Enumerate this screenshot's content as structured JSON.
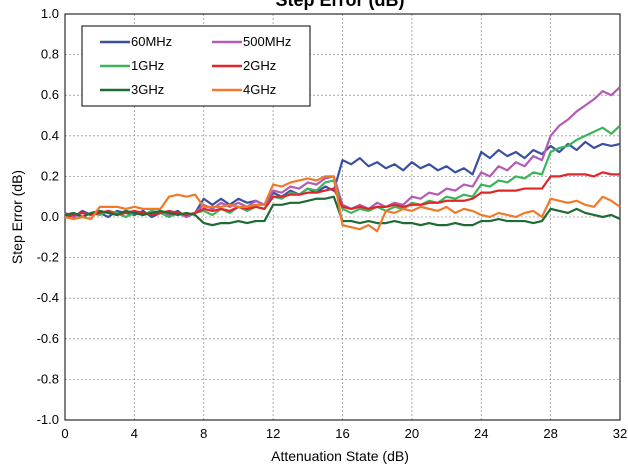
{
  "chart_data": {
    "type": "line",
    "title": "Step Error (dB)",
    "xlabel": "Attenuation State (dB)",
    "ylabel": "Step Error (dB)",
    "x": [
      0,
      0.5,
      1,
      1.5,
      2,
      2.5,
      3,
      3.5,
      4,
      4.5,
      5,
      5.5,
      6,
      6.5,
      7,
      7.5,
      8,
      8.5,
      9,
      9.5,
      10,
      10.5,
      11,
      11.5,
      12,
      12.5,
      13,
      13.5,
      14,
      14.5,
      15,
      15.5,
      16,
      16.5,
      17,
      17.5,
      18,
      18.5,
      19,
      19.5,
      20,
      20.5,
      21,
      21.5,
      22,
      22.5,
      23,
      23.5,
      24,
      24.5,
      25,
      25.5,
      26,
      26.5,
      27,
      27.5,
      28,
      28.5,
      29,
      29.5,
      30,
      30.5,
      31,
      31.5,
      32
    ],
    "series": [
      {
        "name": "60MHz",
        "color": "#3a4fa0",
        "values": [
          0.02,
          0.0,
          0.03,
          0.01,
          0.02,
          0.0,
          0.03,
          0.02,
          0.01,
          0.03,
          0.0,
          0.02,
          0.01,
          0.03,
          0.0,
          0.02,
          0.09,
          0.06,
          0.09,
          0.06,
          0.09,
          0.07,
          0.08,
          0.06,
          0.12,
          0.1,
          0.13,
          0.11,
          0.14,
          0.12,
          0.15,
          0.13,
          0.28,
          0.26,
          0.29,
          0.25,
          0.27,
          0.24,
          0.26,
          0.23,
          0.27,
          0.24,
          0.26,
          0.23,
          0.25,
          0.22,
          0.24,
          0.21,
          0.32,
          0.29,
          0.33,
          0.3,
          0.32,
          0.29,
          0.33,
          0.31,
          0.35,
          0.32,
          0.36,
          0.33,
          0.37,
          0.34,
          0.36,
          0.35,
          0.36
        ]
      },
      {
        "name": "500MHz",
        "color": "#b45bb4",
        "values": [
          0.02,
          0.0,
          0.02,
          0.01,
          0.03,
          0.02,
          0.01,
          0.03,
          0.02,
          0.01,
          0.03,
          0.02,
          0.01,
          0.02,
          0.0,
          0.02,
          0.06,
          0.04,
          0.07,
          0.05,
          0.07,
          0.05,
          0.08,
          0.06,
          0.13,
          0.12,
          0.15,
          0.14,
          0.17,
          0.16,
          0.19,
          0.2,
          0.06,
          0.04,
          0.06,
          0.04,
          0.07,
          0.05,
          0.07,
          0.06,
          0.1,
          0.09,
          0.12,
          0.11,
          0.14,
          0.13,
          0.16,
          0.15,
          0.22,
          0.2,
          0.25,
          0.23,
          0.27,
          0.25,
          0.3,
          0.28,
          0.4,
          0.45,
          0.48,
          0.52,
          0.55,
          0.58,
          0.62,
          0.6,
          0.64
        ]
      },
      {
        "name": "1GHz",
        "color": "#3cb55a",
        "values": [
          0.01,
          0.02,
          0.0,
          0.02,
          0.01,
          0.03,
          0.02,
          0.0,
          0.02,
          0.01,
          0.03,
          0.02,
          0.0,
          0.02,
          0.01,
          0.02,
          0.03,
          0.01,
          0.04,
          0.02,
          0.05,
          0.03,
          0.05,
          0.04,
          0.1,
          0.09,
          0.12,
          0.11,
          0.14,
          0.13,
          0.17,
          0.18,
          0.04,
          0.02,
          0.04,
          0.03,
          0.05,
          0.03,
          0.05,
          0.04,
          0.07,
          0.06,
          0.08,
          0.07,
          0.1,
          0.09,
          0.11,
          0.1,
          0.16,
          0.15,
          0.18,
          0.17,
          0.2,
          0.19,
          0.22,
          0.21,
          0.32,
          0.34,
          0.35,
          0.38,
          0.4,
          0.42,
          0.44,
          0.41,
          0.45
        ]
      },
      {
        "name": "2GHz",
        "color": "#e0262a",
        "values": [
          0.0,
          0.01,
          0.02,
          0.01,
          0.02,
          0.03,
          0.01,
          0.02,
          0.03,
          0.02,
          0.01,
          0.02,
          0.03,
          0.02,
          0.01,
          0.02,
          0.04,
          0.03,
          0.04,
          0.03,
          0.05,
          0.04,
          0.05,
          0.04,
          0.1,
          0.1,
          0.11,
          0.11,
          0.12,
          0.12,
          0.13,
          0.14,
          0.05,
          0.04,
          0.05,
          0.04,
          0.05,
          0.05,
          0.06,
          0.05,
          0.06,
          0.06,
          0.07,
          0.07,
          0.08,
          0.08,
          0.08,
          0.09,
          0.12,
          0.12,
          0.13,
          0.13,
          0.13,
          0.14,
          0.14,
          0.14,
          0.2,
          0.2,
          0.21,
          0.21,
          0.21,
          0.2,
          0.22,
          0.21,
          0.21
        ]
      },
      {
        "name": "3GHz",
        "color": "#1f6b35",
        "values": [
          0.01,
          0.02,
          0.0,
          0.02,
          0.03,
          0.02,
          0.01,
          0.03,
          0.02,
          0.01,
          0.02,
          0.03,
          0.02,
          0.01,
          0.02,
          0.01,
          -0.03,
          -0.04,
          -0.03,
          -0.03,
          -0.02,
          -0.03,
          -0.02,
          -0.02,
          0.06,
          0.06,
          0.07,
          0.07,
          0.08,
          0.09,
          0.09,
          0.1,
          -0.02,
          -0.02,
          -0.03,
          -0.02,
          -0.03,
          -0.03,
          -0.02,
          -0.03,
          -0.03,
          -0.04,
          -0.03,
          -0.04,
          -0.04,
          -0.03,
          -0.04,
          -0.04,
          -0.02,
          -0.02,
          -0.01,
          -0.02,
          -0.02,
          -0.02,
          -0.03,
          -0.02,
          0.04,
          0.03,
          0.02,
          0.04,
          0.02,
          0.01,
          0.0,
          0.01,
          -0.01
        ]
      },
      {
        "name": "4GHz",
        "color": "#f07a2a",
        "values": [
          0.0,
          -0.01,
          0.0,
          -0.01,
          0.05,
          0.05,
          0.05,
          0.04,
          0.05,
          0.04,
          0.04,
          0.04,
          0.1,
          0.11,
          0.1,
          0.11,
          0.05,
          0.05,
          0.05,
          0.06,
          0.05,
          0.05,
          0.06,
          0.06,
          0.16,
          0.15,
          0.17,
          0.18,
          0.19,
          0.18,
          0.2,
          0.2,
          -0.04,
          -0.05,
          -0.06,
          -0.04,
          -0.07,
          0.03,
          0.02,
          0.04,
          0.03,
          0.05,
          0.04,
          0.03,
          0.05,
          0.02,
          0.04,
          0.03,
          0.01,
          0.0,
          0.02,
          0.01,
          0.0,
          0.02,
          0.03,
          0.0,
          0.09,
          0.08,
          0.07,
          0.08,
          0.06,
          0.05,
          0.1,
          0.08,
          0.05
        ]
      }
    ],
    "xlim": [
      0,
      32
    ],
    "xticks": [
      0,
      4,
      8,
      12,
      16,
      20,
      24,
      28,
      32
    ],
    "ylim": [
      -1,
      1
    ],
    "yticks": [
      {
        "value": -1,
        "label": "-1.0"
      },
      -0.8,
      -0.6,
      -0.4,
      -0.2,
      {
        "value": 0,
        "label": "0.0"
      },
      0.2,
      0.4,
      0.6,
      0.8,
      {
        "value": 1,
        "label": "1.0"
      }
    ],
    "grid": true,
    "legend": "upper left"
  }
}
